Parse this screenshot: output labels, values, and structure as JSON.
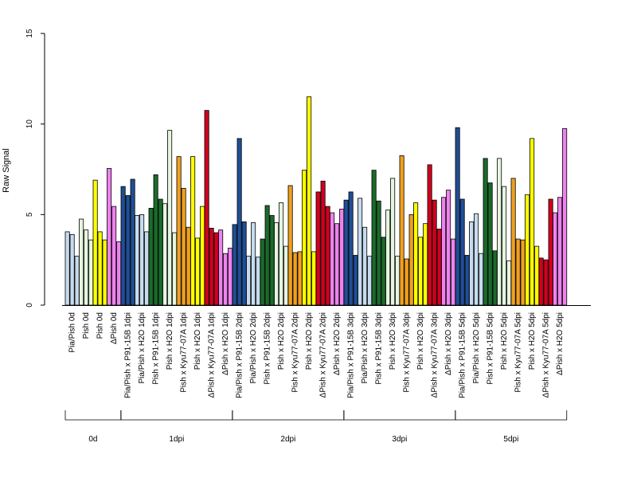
{
  "chart_data": {
    "type": "bar",
    "title": "",
    "xlabel": "",
    "ylabel": "Raw Signal",
    "ylim": [
      0,
      15
    ],
    "yticks": [
      0,
      5,
      10,
      15
    ],
    "grid": false,
    "legend": "none",
    "categories": [
      "Pia/Pish 0d",
      "Pish 0d",
      "Pish 0d",
      "ΔPish 0d",
      "Pia/Pish x P91-15B 1dpi",
      "Pia/Pish x H2O 1dpi",
      "Pish x P91-15B 1dpi",
      "Pish x H2O 1dpi",
      "Pish x Kyu77-07A 1dpi",
      "Pish x H2O 1dpi",
      "ΔPish x Kyu77-07A 1dpi",
      "ΔPish x H2O 1dpi",
      "Pia/Pish x P91-15B 2dpi",
      "Pia/Pish x H2O 2dpi",
      "Pish x P91-15B 2dpi",
      "Pish x H2O 2dpi",
      "Pish x Kyu77-07A 2dpi",
      "Pish x H2O 2dpi",
      "ΔPish x Kyu77-07A 2dpi",
      "ΔPish x H2O 2dpi",
      "Pia/Pish x P91-15B 3dpi",
      "Pia/Pish x H2O 3dpi",
      "Pish x P91-15B 3dpi",
      "Pish x H2O 3dpi",
      "Pish x Kyu77-07A 3dpi",
      "Pish x H2O 3dpi",
      "ΔPish x Kyu77-07A 3dpi",
      "ΔPish x H2O 3dpi",
      "Pia/Pish x P91-15B 5dpi",
      "Pia/Pish x H2O 5dpi",
      "Pish x P91-15B 5dpi",
      "Pish x H2O 5dpi",
      "Pish x Kyu77-07A 5dpi",
      "Pish x H2O 5dpi",
      "ΔPish x Kyu77-07A 5dpi",
      "ΔPish x H2O 5dpi"
    ],
    "colors": [
      "#c6dbef",
      "#e5f5e0",
      "#ffff00",
      "#ee82ee",
      "#1f4e96",
      "#c6dbef",
      "#1a6b2a",
      "#e5f5e0",
      "#f0a020",
      "#ffff00",
      "#d1001f",
      "#ee82ee",
      "#1f4e96",
      "#c6dbef",
      "#1a6b2a",
      "#e5f5e0",
      "#f0a020",
      "#ffff00",
      "#d1001f",
      "#ee82ee",
      "#1f4e96",
      "#c6dbef",
      "#1a6b2a",
      "#e5f5e0",
      "#f0a020",
      "#ffff00",
      "#d1001f",
      "#ee82ee",
      "#1f4e96",
      "#c6dbef",
      "#1a6b2a",
      "#e5f5e0",
      "#f0a020",
      "#ffff00",
      "#d1001f",
      "#ee82ee"
    ],
    "values": [
      [
        4.05,
        3.9,
        2.7
      ],
      [
        4.75,
        4.15,
        3.6
      ],
      [
        6.9,
        4.05,
        3.6
      ],
      [
        7.55,
        5.45,
        3.5
      ],
      [
        6.55,
        6.05,
        6.95
      ],
      [
        4.95,
        5.0,
        4.05
      ],
      [
        5.35,
        7.2,
        5.85
      ],
      [
        5.6,
        9.65,
        4.0
      ],
      [
        8.2,
        6.45,
        4.3
      ],
      [
        8.2,
        3.7,
        5.45
      ],
      [
        10.75,
        4.25,
        4.0
      ],
      [
        4.15,
        2.85,
        3.15
      ],
      [
        4.45,
        9.2,
        4.6
      ],
      [
        2.7,
        4.55,
        2.65
      ],
      [
        3.65,
        5.5,
        4.95
      ],
      [
        4.55,
        5.65,
        3.25
      ],
      [
        6.6,
        2.9,
        2.95
      ],
      [
        7.45,
        11.5,
        2.95
      ],
      [
        6.25,
        6.85,
        5.45
      ],
      [
        5.1,
        4.5,
        5.3
      ],
      [
        5.8,
        6.25,
        2.75
      ],
      [
        5.9,
        4.3,
        2.7
      ],
      [
        7.45,
        5.75,
        3.75
      ],
      [
        5.25,
        7.0,
        2.7
      ],
      [
        8.25,
        2.55,
        5.0
      ],
      [
        5.65,
        3.75,
        4.5
      ],
      [
        7.75,
        5.8,
        4.2
      ],
      [
        5.95,
        6.35,
        3.65
      ],
      [
        9.8,
        5.85,
        2.75
      ],
      [
        4.6,
        5.05,
        2.85
      ],
      [
        8.1,
        6.75,
        3.0
      ],
      [
        8.1,
        6.55,
        2.45
      ],
      [
        7.0,
        3.65,
        3.6
      ],
      [
        6.1,
        9.2,
        3.25
      ],
      [
        2.6,
        2.5,
        5.85
      ],
      [
        5.1,
        5.95,
        9.75
      ]
    ],
    "groups": [
      {
        "label": "0d",
        "start": 0,
        "end": 3
      },
      {
        "label": "1dpi",
        "start": 4,
        "end": 11
      },
      {
        "label": "2dpi",
        "start": 12,
        "end": 19
      },
      {
        "label": "3dpi",
        "start": 20,
        "end": 27
      },
      {
        "label": "5dpi",
        "start": 28,
        "end": 35
      }
    ]
  }
}
